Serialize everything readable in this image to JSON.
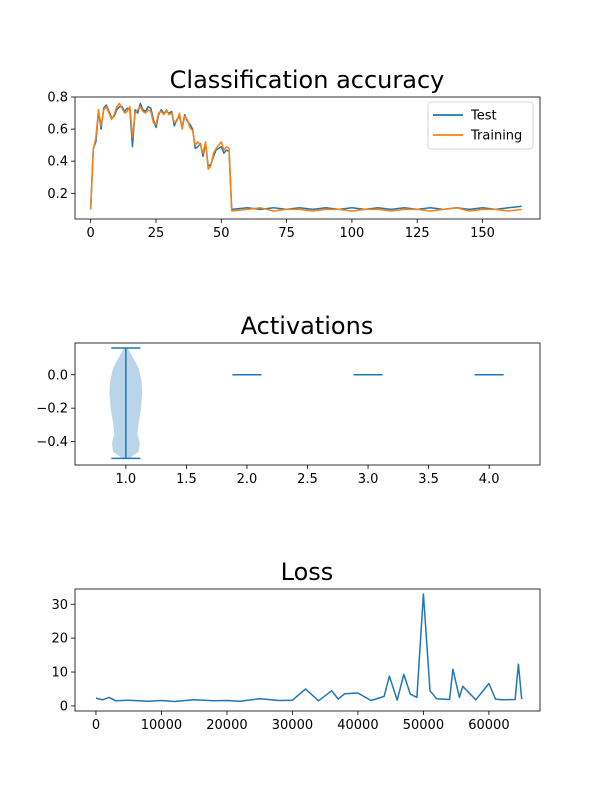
{
  "chart_data": [
    {
      "type": "line",
      "title": "Classification accuracy",
      "xlim": [
        -6,
        172
      ],
      "ylim": [
        0.04,
        0.8
      ],
      "xticks": [
        0,
        25,
        50,
        75,
        100,
        125,
        150
      ],
      "yticks": [
        0.2,
        0.4,
        0.6,
        0.8
      ],
      "legend_placement": "top-right",
      "series": [
        {
          "name": "Test",
          "color": "#1f77b4",
          "x": [
            0,
            1,
            2,
            3,
            4,
            5,
            6,
            7,
            8,
            9,
            10,
            11,
            12,
            13,
            14,
            15,
            16,
            17,
            18,
            19,
            20,
            21,
            22,
            23,
            24,
            25,
            26,
            27,
            28,
            29,
            30,
            31,
            32,
            33,
            34,
            35,
            36,
            37,
            38,
            39,
            40,
            41,
            42,
            43,
            44,
            45,
            46,
            47,
            48,
            49,
            50,
            51,
            52,
            53,
            54,
            60,
            65,
            70,
            75,
            80,
            85,
            90,
            95,
            100,
            105,
            110,
            115,
            120,
            125,
            130,
            135,
            140,
            145,
            150,
            155,
            160,
            165
          ],
          "y": [
            0.11,
            0.48,
            0.52,
            0.71,
            0.6,
            0.73,
            0.75,
            0.71,
            0.67,
            0.68,
            0.72,
            0.74,
            0.74,
            0.71,
            0.73,
            0.72,
            0.49,
            0.72,
            0.7,
            0.76,
            0.72,
            0.71,
            0.74,
            0.73,
            0.66,
            0.61,
            0.69,
            0.72,
            0.7,
            0.71,
            0.7,
            0.71,
            0.62,
            0.66,
            0.68,
            0.61,
            0.69,
            0.65,
            0.63,
            0.6,
            0.48,
            0.49,
            0.51,
            0.43,
            0.51,
            0.37,
            0.38,
            0.43,
            0.47,
            0.48,
            0.49,
            0.45,
            0.47,
            0.46,
            0.1,
            0.11,
            0.1,
            0.11,
            0.1,
            0.11,
            0.1,
            0.11,
            0.1,
            0.11,
            0.1,
            0.11,
            0.1,
            0.11,
            0.1,
            0.11,
            0.1,
            0.11,
            0.1,
            0.11,
            0.1,
            0.11,
            0.12
          ]
        },
        {
          "name": "Training",
          "color": "#ff7f0e",
          "x": [
            0,
            1,
            2,
            3,
            4,
            5,
            6,
            7,
            8,
            9,
            10,
            11,
            12,
            13,
            14,
            15,
            16,
            17,
            18,
            19,
            20,
            21,
            22,
            23,
            24,
            25,
            26,
            27,
            28,
            29,
            30,
            31,
            32,
            33,
            34,
            35,
            36,
            37,
            38,
            39,
            40,
            41,
            42,
            43,
            44,
            45,
            46,
            47,
            48,
            49,
            50,
            51,
            52,
            53,
            54,
            60,
            65,
            70,
            75,
            80,
            85,
            90,
            95,
            100,
            105,
            110,
            115,
            120,
            125,
            130,
            135,
            140,
            145,
            150,
            155,
            160,
            165
          ],
          "y": [
            0.1,
            0.47,
            0.55,
            0.72,
            0.62,
            0.72,
            0.74,
            0.7,
            0.66,
            0.69,
            0.74,
            0.76,
            0.73,
            0.7,
            0.71,
            0.74,
            0.55,
            0.7,
            0.72,
            0.74,
            0.71,
            0.7,
            0.72,
            0.71,
            0.64,
            0.63,
            0.7,
            0.71,
            0.69,
            0.72,
            0.69,
            0.7,
            0.64,
            0.65,
            0.7,
            0.6,
            0.68,
            0.66,
            0.61,
            0.59,
            0.5,
            0.52,
            0.5,
            0.45,
            0.52,
            0.35,
            0.37,
            0.45,
            0.48,
            0.5,
            0.52,
            0.47,
            0.49,
            0.48,
            0.09,
            0.1,
            0.11,
            0.09,
            0.1,
            0.1,
            0.09,
            0.1,
            0.1,
            0.09,
            0.1,
            0.1,
            0.09,
            0.1,
            0.1,
            0.09,
            0.1,
            0.11,
            0.09,
            0.1,
            0.1,
            0.09,
            0.1
          ]
        }
      ]
    },
    {
      "type": "violin",
      "title": "Activations",
      "xlim": [
        0.58,
        4.42
      ],
      "ylim": [
        -0.54,
        0.19
      ],
      "xticks": [
        1.0,
        1.5,
        2.0,
        2.5,
        3.0,
        3.5,
        4.0
      ],
      "yticks": [
        0.0,
        -0.2,
        -0.4
      ],
      "color": "#1f77b4",
      "fill": "#b6d2e8",
      "violins": [
        {
          "position": 1,
          "min": -0.5,
          "max": 0.16
        },
        {
          "position": 2,
          "min": 0.0,
          "max": 0.0
        },
        {
          "position": 3,
          "min": 0.0,
          "max": 0.0
        },
        {
          "position": 4,
          "min": 0.0,
          "max": 0.0
        }
      ]
    },
    {
      "type": "line",
      "title": "Loss",
      "xlim": [
        -3200,
        67800
      ],
      "ylim": [
        -1.5,
        34.5
      ],
      "xticks": [
        0,
        10000,
        20000,
        30000,
        40000,
        50000,
        60000
      ],
      "yticks": [
        0,
        10,
        20,
        30
      ],
      "series": [
        {
          "color": "#1f77b4",
          "x": [
            0,
            1000,
            2000,
            3000,
            5000,
            8000,
            10000,
            12000,
            15000,
            18000,
            20000,
            22000,
            25000,
            28000,
            30000,
            32000,
            34000,
            36000,
            37000,
            38000,
            40000,
            42000,
            44000,
            44800,
            46000,
            47000,
            48000,
            49000,
            50000,
            51000,
            52000,
            54000,
            54500,
            55500,
            56000,
            58000,
            60000,
            61000,
            62000,
            64000,
            64500,
            65000
          ],
          "y": [
            2.3,
            1.8,
            2.5,
            1.5,
            1.7,
            1.4,
            1.6,
            1.3,
            1.8,
            1.5,
            1.6,
            1.4,
            2.1,
            1.6,
            1.7,
            5.0,
            1.5,
            4.5,
            2.0,
            3.6,
            3.8,
            1.6,
            2.8,
            8.8,
            1.7,
            9.3,
            3.5,
            2.5,
            33.0,
            4.5,
            2.1,
            1.9,
            10.8,
            2.5,
            5.8,
            1.8,
            6.6,
            2.0,
            1.8,
            1.9,
            12.3,
            2.0
          ]
        }
      ]
    }
  ]
}
